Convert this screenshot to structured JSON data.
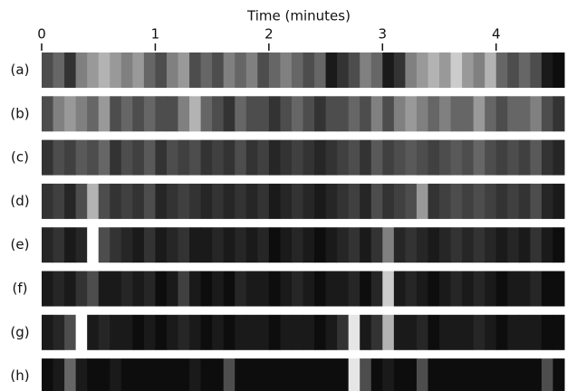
{
  "chart_data": {
    "type": "strips",
    "xlabel": "Time (minutes)",
    "colormap": "gray",
    "xlim": [
      0,
      4.6
    ],
    "xticks": [
      0,
      1,
      2,
      3,
      4
    ],
    "bins": [
      0,
      0.1,
      0.2,
      0.3,
      0.4,
      0.5,
      0.6,
      0.7,
      0.8,
      0.9,
      1.0,
      1.1,
      1.2,
      1.3,
      1.4,
      1.5,
      1.6,
      1.7,
      1.8,
      1.9,
      2.0,
      2.1,
      2.2,
      2.3,
      2.4,
      2.5,
      2.6,
      2.7,
      2.8,
      2.9,
      3.0,
      3.1,
      3.2,
      3.3,
      3.4,
      3.5,
      3.6,
      3.7,
      3.8,
      3.9,
      4.0,
      4.1,
      4.2,
      4.3,
      4.4,
      4.5,
      4.6
    ],
    "series": [
      {
        "name": "(a)",
        "values": [
          0.3,
          0.4,
          0.2,
          0.5,
          0.6,
          0.7,
          0.6,
          0.5,
          0.6,
          0.4,
          0.3,
          0.5,
          0.6,
          0.3,
          0.4,
          0.3,
          0.5,
          0.4,
          0.5,
          0.3,
          0.4,
          0.5,
          0.4,
          0.3,
          0.4,
          0.1,
          0.2,
          0.3,
          0.5,
          0.4,
          0.1,
          0.2,
          0.5,
          0.6,
          0.7,
          0.6,
          0.8,
          0.6,
          0.5,
          0.7,
          0.4,
          0.3,
          0.4,
          0.3,
          0.1,
          0.05
        ]
      },
      {
        "name": "(b)",
        "values": [
          0.3,
          0.5,
          0.6,
          0.5,
          0.4,
          0.6,
          0.3,
          0.4,
          0.3,
          0.4,
          0.3,
          0.3,
          0.5,
          0.7,
          0.4,
          0.3,
          0.2,
          0.4,
          0.3,
          0.3,
          0.2,
          0.3,
          0.4,
          0.3,
          0.2,
          0.3,
          0.3,
          0.4,
          0.3,
          0.5,
          0.3,
          0.5,
          0.6,
          0.5,
          0.4,
          0.5,
          0.4,
          0.4,
          0.6,
          0.4,
          0.3,
          0.4,
          0.4,
          0.5,
          0.3,
          0.2
        ]
      },
      {
        "name": "(c)",
        "values": [
          0.2,
          0.3,
          0.25,
          0.35,
          0.3,
          0.4,
          0.2,
          0.3,
          0.25,
          0.35,
          0.2,
          0.3,
          0.25,
          0.3,
          0.2,
          0.25,
          0.2,
          0.3,
          0.2,
          0.25,
          0.15,
          0.2,
          0.25,
          0.2,
          0.15,
          0.2,
          0.25,
          0.3,
          0.2,
          0.35,
          0.25,
          0.3,
          0.35,
          0.3,
          0.25,
          0.3,
          0.35,
          0.3,
          0.4,
          0.3,
          0.25,
          0.3,
          0.25,
          0.35,
          0.2,
          0.15
        ]
      },
      {
        "name": "(d)",
        "values": [
          0.2,
          0.25,
          0.15,
          0.3,
          0.7,
          0.3,
          0.2,
          0.25,
          0.2,
          0.3,
          0.15,
          0.2,
          0.25,
          0.2,
          0.15,
          0.2,
          0.15,
          0.2,
          0.15,
          0.2,
          0.1,
          0.15,
          0.2,
          0.15,
          0.1,
          0.15,
          0.2,
          0.25,
          0.15,
          0.3,
          0.2,
          0.25,
          0.3,
          0.6,
          0.2,
          0.25,
          0.3,
          0.25,
          0.3,
          0.25,
          0.2,
          0.25,
          0.2,
          0.3,
          0.15,
          0.1
        ]
      },
      {
        "name": "(e)",
        "values": [
          0.15,
          0.2,
          0.1,
          0.15,
          1.0,
          0.3,
          0.2,
          0.15,
          0.1,
          0.2,
          0.1,
          0.15,
          0.2,
          0.1,
          0.1,
          0.15,
          0.1,
          0.15,
          0.1,
          0.15,
          0.05,
          0.1,
          0.15,
          0.1,
          0.05,
          0.1,
          0.15,
          0.2,
          0.1,
          0.2,
          0.5,
          0.15,
          0.2,
          0.15,
          0.1,
          0.15,
          0.2,
          0.15,
          0.2,
          0.15,
          0.1,
          0.15,
          0.1,
          0.2,
          0.1,
          0.05
        ]
      },
      {
        "name": "(f)",
        "values": [
          0.1,
          0.15,
          0.1,
          0.2,
          0.3,
          0.1,
          0.1,
          0.15,
          0.1,
          0.15,
          0.05,
          0.1,
          0.25,
          0.1,
          0.05,
          0.1,
          0.05,
          0.15,
          0.1,
          0.1,
          0.05,
          0.1,
          0.15,
          0.1,
          0.05,
          0.1,
          0.1,
          0.15,
          0.05,
          0.15,
          0.8,
          0.1,
          0.15,
          0.1,
          0.05,
          0.1,
          0.15,
          0.1,
          0.15,
          0.1,
          0.05,
          0.1,
          0.1,
          0.15,
          0.05,
          0.05
        ]
      },
      {
        "name": "(g)",
        "values": [
          0.1,
          0.15,
          0.3,
          1.0,
          0.1,
          0.15,
          0.1,
          0.1,
          0.05,
          0.1,
          0.05,
          0.1,
          0.15,
          0.1,
          0.05,
          0.1,
          0.05,
          0.1,
          0.1,
          0.1,
          0.05,
          0.1,
          0.1,
          0.1,
          0.05,
          0.1,
          0.2,
          0.9,
          0.1,
          0.2,
          0.7,
          0.1,
          0.1,
          0.15,
          0.05,
          0.1,
          0.1,
          0.1,
          0.15,
          0.1,
          0.05,
          0.1,
          0.1,
          0.1,
          0.05,
          0.05
        ]
      },
      {
        "name": "(h)",
        "values": [
          0.05,
          0.1,
          0.4,
          0.1,
          0.05,
          0.05,
          0.1,
          0.05,
          0.05,
          0.05,
          0.05,
          0.05,
          0.05,
          0.1,
          0.05,
          0.05,
          0.3,
          0.05,
          0.05,
          0.05,
          0.05,
          0.05,
          0.05,
          0.05,
          0.05,
          0.05,
          0.05,
          0.9,
          0.3,
          0.05,
          0.1,
          0.05,
          0.05,
          0.3,
          0.05,
          0.05,
          0.05,
          0.05,
          0.05,
          0.05,
          0.05,
          0.05,
          0.05,
          0.05,
          0.3,
          0.05
        ]
      }
    ]
  }
}
